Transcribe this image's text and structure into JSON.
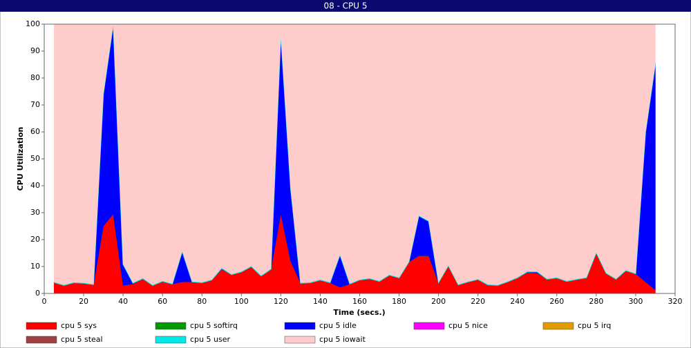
{
  "chart_data": {
    "type": "stacked_area",
    "title": "08 - CPU 5",
    "xlabel": "Time (secs.)",
    "ylabel": "CPU Utilization",
    "xlim": [
      0,
      320
    ],
    "xticks": [
      0,
      20,
      40,
      60,
      80,
      100,
      120,
      140,
      160,
      180,
      200,
      220,
      240,
      260,
      280,
      300,
      320
    ],
    "ylim": [
      0,
      100
    ],
    "yticks": [
      0,
      10,
      20,
      30,
      40,
      50,
      60,
      70,
      80,
      90,
      100
    ],
    "x": [
      5,
      10,
      15,
      20,
      25,
      30,
      35,
      40,
      45,
      50,
      55,
      60,
      65,
      70,
      75,
      80,
      85,
      90,
      95,
      100,
      105,
      110,
      115,
      120,
      125,
      130,
      135,
      140,
      145,
      150,
      155,
      160,
      165,
      170,
      175,
      180,
      185,
      190,
      195,
      200,
      205,
      210,
      215,
      220,
      225,
      230,
      235,
      240,
      245,
      250,
      255,
      260,
      265,
      270,
      275,
      280,
      285,
      290,
      295,
      300,
      305,
      310
    ],
    "series": [
      {
        "name": "cpu 5 sys",
        "color": "#ff0000",
        "values": [
          4.1,
          3,
          4,
          3.8,
          3.3,
          25,
          29.5,
          3,
          3.5,
          5.5,
          3,
          4.5,
          3.5,
          4.3,
          4.3,
          4,
          5,
          9,
          7,
          8,
          10,
          6.5,
          9,
          29.5,
          12,
          3.8,
          4,
          5,
          4,
          2.3,
          3.5,
          5,
          5.5,
          4.5,
          6.8,
          5.8,
          11.7,
          14,
          14,
          4,
          10.3,
          3.2,
          4.3,
          5.2,
          3.2,
          3,
          4.3,
          5.8,
          7.8,
          7.6,
          5.3,
          5.8,
          4.5,
          5.2,
          5.8,
          14.8,
          7.5,
          5.3,
          8.5,
          7.3,
          4.3,
          1.3
        ]
      },
      {
        "name": "cpu 5 softirq",
        "color": "#009900",
        "values": [
          0,
          0,
          0,
          0,
          0,
          0,
          0,
          0,
          0,
          0,
          0,
          0,
          0,
          0,
          0,
          0,
          0,
          0,
          0,
          0,
          0,
          0,
          0,
          0,
          0,
          0,
          0,
          0,
          0,
          0,
          0,
          0,
          0,
          0,
          0,
          0,
          0,
          0,
          0,
          0,
          0,
          0,
          0,
          0,
          0,
          0,
          0,
          0,
          0,
          0,
          0,
          0,
          0,
          0,
          0,
          0,
          0,
          0,
          0,
          0,
          0,
          0
        ]
      },
      {
        "name": "cpu 5 idle",
        "color": "#0000ff",
        "values": [
          0,
          0,
          0,
          0,
          0,
          49,
          70.3,
          7.8,
          0.3,
          0,
          0,
          0,
          0,
          11.3,
          0,
          0,
          0,
          0.3,
          0,
          0,
          0,
          0,
          0,
          66.3,
          26.8,
          0,
          0,
          0,
          0,
          12,
          0,
          0,
          0,
          0,
          0,
          0,
          0,
          14.8,
          12.8,
          0,
          0,
          0,
          0,
          0,
          0,
          0,
          0,
          0,
          0.2,
          0.4,
          0,
          0,
          0,
          0,
          0,
          0.3,
          0,
          0,
          0,
          0,
          55.5,
          84
        ]
      },
      {
        "name": "cpu 5 nice",
        "color": "#ff00ff",
        "values": [
          0,
          0,
          0,
          0,
          0,
          0,
          0,
          0,
          0,
          0,
          0,
          0,
          0,
          0,
          0,
          0,
          0,
          0,
          0,
          0,
          0,
          0,
          0,
          0,
          0,
          0,
          0,
          0,
          0,
          0,
          0,
          0,
          0,
          0,
          0,
          0,
          0,
          0,
          0,
          0,
          0,
          0,
          0,
          0,
          0,
          0,
          0,
          0,
          0,
          0,
          0,
          0,
          0,
          0,
          0,
          0,
          0,
          0,
          0,
          0,
          0,
          0
        ]
      },
      {
        "name": "cpu 5 irq",
        "color": "#e09c00",
        "values": [
          0,
          0,
          0,
          0,
          0,
          0,
          0,
          0,
          0,
          0,
          0,
          0,
          0,
          0,
          0,
          0,
          0,
          0,
          0,
          0,
          0,
          0,
          0,
          0,
          0,
          0,
          0,
          0,
          0,
          0,
          0,
          0,
          0,
          0,
          0,
          0,
          0,
          0,
          0,
          0,
          0,
          0,
          0,
          0,
          0,
          0,
          0,
          0,
          0,
          0,
          0,
          0,
          0,
          0,
          0,
          0,
          0,
          0,
          0,
          0,
          0,
          0
        ]
      },
      {
        "name": "cpu 5 steal",
        "color": "#a04040",
        "values": [
          0,
          0,
          0,
          0,
          0,
          0,
          0,
          0,
          0,
          0,
          0,
          0,
          0,
          0,
          0,
          0,
          0,
          0,
          0,
          0,
          0,
          0,
          0,
          0,
          0,
          0,
          0,
          0,
          0,
          0,
          0,
          0,
          0,
          0,
          0,
          0,
          0,
          0,
          0,
          0,
          0,
          0,
          0,
          0,
          0,
          0,
          0,
          0,
          0,
          0,
          0,
          0,
          0,
          0,
          0,
          0,
          0,
          0,
          0,
          0,
          0,
          0
        ]
      },
      {
        "name": "cpu 5 user",
        "color": "#00e8e8",
        "values": [
          0.2,
          0.2,
          0.2,
          0.2,
          0.2,
          0.2,
          0.2,
          0.2,
          0.2,
          0.2,
          0.2,
          0.2,
          0.2,
          0.2,
          0.2,
          0.2,
          0.2,
          0.2,
          0.2,
          0.2,
          0.2,
          0.2,
          0.2,
          0.2,
          0.2,
          0.2,
          0.2,
          0.2,
          0.2,
          0.2,
          0.2,
          0.2,
          0.2,
          0.2,
          0.2,
          0.2,
          0.2,
          0.2,
          0.2,
          0.2,
          0.2,
          0.2,
          0.2,
          0.2,
          0.2,
          0.2,
          0.2,
          0.2,
          0.2,
          0.2,
          0.2,
          0.2,
          0.2,
          0.2,
          0.2,
          0.2,
          0.2,
          0.2,
          0.2,
          0.2,
          0.2,
          0.2
        ]
      },
      {
        "name": "cpu 5 iowait",
        "color": "#ffcccc",
        "values": [
          95.7,
          96.8,
          95.8,
          96,
          96.5,
          25.8,
          0,
          89,
          96,
          94.3,
          96.8,
          95.3,
          96.3,
          84.2,
          95.5,
          95.8,
          94.8,
          90.5,
          92.8,
          91.8,
          89.8,
          93.3,
          90.8,
          4,
          61,
          96,
          95.8,
          94.8,
          95.8,
          85.5,
          96.3,
          94.8,
          94.3,
          95.3,
          93,
          94,
          88.1,
          71,
          73,
          95.8,
          89.5,
          96.6,
          95.5,
          94.6,
          96.6,
          96.8,
          95.5,
          94,
          91.8,
          91.8,
          94.5,
          94,
          95.3,
          94.6,
          94,
          84.7,
          92.3,
          94.5,
          91.3,
          92.5,
          40,
          14.5
        ]
      }
    ]
  }
}
